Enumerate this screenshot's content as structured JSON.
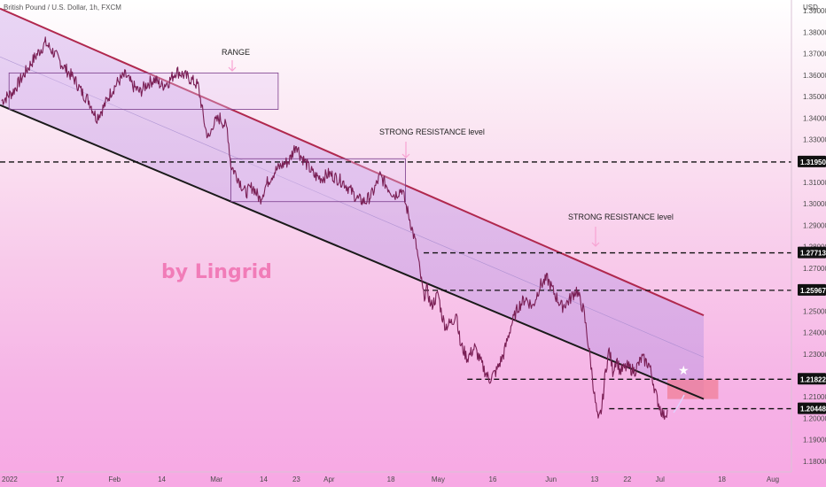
{
  "chart_title": "British Pound / U.S. Dollar, 1h, FXCM",
  "currency_label": "USD",
  "watermark": "by Lingrid",
  "annotations": {
    "range": "RANGE",
    "strong_resistance_1": "STRONG RESISTANCE level",
    "strong_resistance_2": "STRONG RESISTANCE level"
  },
  "colors": {
    "candle": "#7a1f55",
    "channel_upper": "#b0284e",
    "channel_lower": "#1a1a1a",
    "channel_fill": "#c9a0e6",
    "badge_bg": "#111111",
    "red_zone": "#f07d96"
  },
  "chart_data": {
    "type": "line",
    "title": "British Pound / U.S. Dollar, 1h, FXCM",
    "ylabel": "USD",
    "ylim": [
      1.175,
      1.395
    ],
    "y_ticks": [
      "1.18000",
      "1.19000",
      "1.20000",
      "1.21000",
      "1.23000",
      "1.24000",
      "1.25000",
      "1.26000",
      "1.27000",
      "1.28000",
      "1.29000",
      "1.30000",
      "1.31000",
      "1.32000",
      "1.33000",
      "1.34000",
      "1.35000",
      "1.36000",
      "1.37000",
      "1.38000",
      "1.39000"
    ],
    "x_ticks": [
      {
        "label": "2022",
        "t": 0
      },
      {
        "label": "17",
        "t": 16
      },
      {
        "label": "Feb",
        "t": 31
      },
      {
        "label": "14",
        "t": 44
      },
      {
        "label": "Mar",
        "t": 59
      },
      {
        "label": "14",
        "t": 72
      },
      {
        "label": "23",
        "t": 81
      },
      {
        "label": "Apr",
        "t": 90
      },
      {
        "label": "18",
        "t": 107
      },
      {
        "label": "May",
        "t": 120
      },
      {
        "label": "16",
        "t": 135
      },
      {
        "label": "Jun",
        "t": 151
      },
      {
        "label": "13",
        "t": 163
      },
      {
        "label": "22",
        "t": 172
      },
      {
        "label": "Jul",
        "t": 181
      },
      {
        "label": "18",
        "t": 198
      },
      {
        "label": "Aug",
        "t": 212
      }
    ],
    "price_series": [
      [
        0,
        1.348
      ],
      [
        3,
        1.352
      ],
      [
        6,
        1.36
      ],
      [
        9,
        1.368
      ],
      [
        12,
        1.375
      ],
      [
        14,
        1.371
      ],
      [
        17,
        1.364
      ],
      [
        20,
        1.358
      ],
      [
        22,
        1.352
      ],
      [
        24,
        1.348
      ],
      [
        26,
        1.34
      ],
      [
        28,
        1.345
      ],
      [
        30,
        1.352
      ],
      [
        32,
        1.357
      ],
      [
        34,
        1.36
      ],
      [
        36,
        1.355
      ],
      [
        38,
        1.352
      ],
      [
        40,
        1.356
      ],
      [
        42,
        1.358
      ],
      [
        44,
        1.355
      ],
      [
        46,
        1.357
      ],
      [
        48,
        1.362
      ],
      [
        50,
        1.36
      ],
      [
        52,
        1.358
      ],
      [
        54,
        1.355
      ],
      [
        55,
        1.345
      ],
      [
        56,
        1.335
      ],
      [
        57,
        1.33
      ],
      [
        58,
        1.337
      ],
      [
        60,
        1.34
      ],
      [
        62,
        1.335
      ],
      [
        63,
        1.318
      ],
      [
        65,
        1.312
      ],
      [
        67,
        1.305
      ],
      [
        69,
        1.308
      ],
      [
        71,
        1.302
      ],
      [
        73,
        1.31
      ],
      [
        75,
        1.315
      ],
      [
        77,
        1.318
      ],
      [
        79,
        1.32
      ],
      [
        81,
        1.328
      ],
      [
        82,
        1.323
      ],
      [
        84,
        1.318
      ],
      [
        86,
        1.313
      ],
      [
        88,
        1.312
      ],
      [
        90,
        1.314
      ],
      [
        92,
        1.312
      ],
      [
        94,
        1.31
      ],
      [
        96,
        1.306
      ],
      [
        98,
        1.302
      ],
      [
        100,
        1.301
      ],
      [
        102,
        1.305
      ],
      [
        104,
        1.313
      ],
      [
        106,
        1.308
      ],
      [
        108,
        1.304
      ],
      [
        110,
        1.307
      ],
      [
        111,
        1.3
      ],
      [
        112,
        1.294
      ],
      [
        113,
        1.287
      ],
      [
        114,
        1.28
      ],
      [
        115,
        1.268
      ],
      [
        116,
        1.257
      ],
      [
        117,
        1.26
      ],
      [
        118,
        1.252
      ],
      [
        119,
        1.255
      ],
      [
        120,
        1.258
      ],
      [
        121,
        1.248
      ],
      [
        122,
        1.243
      ],
      [
        124,
        1.245
      ],
      [
        125,
        1.25
      ],
      [
        126,
        1.235
      ],
      [
        128,
        1.228
      ],
      [
        130,
        1.233
      ],
      [
        132,
        1.225
      ],
      [
        134,
        1.218
      ],
      [
        136,
        1.222
      ],
      [
        138,
        1.23
      ],
      [
        140,
        1.243
      ],
      [
        142,
        1.252
      ],
      [
        144,
        1.256
      ],
      [
        146,
        1.252
      ],
      [
        148,
        1.262
      ],
      [
        150,
        1.265
      ],
      [
        152,
        1.258
      ],
      [
        154,
        1.252
      ],
      [
        156,
        1.255
      ],
      [
        158,
        1.26
      ],
      [
        160,
        1.25
      ],
      [
        161,
        1.238
      ],
      [
        162,
        1.225
      ],
      [
        163,
        1.21
      ],
      [
        164,
        1.198
      ],
      [
        165,
        1.205
      ],
      [
        166,
        1.222
      ],
      [
        167,
        1.232
      ],
      [
        168,
        1.222
      ],
      [
        169,
        1.228
      ],
      [
        170,
        1.222
      ],
      [
        172,
        1.224
      ],
      [
        174,
        1.222
      ],
      [
        176,
        1.228
      ],
      [
        178,
        1.225
      ],
      [
        179,
        1.218
      ],
      [
        180,
        1.21
      ],
      [
        181,
        1.205
      ],
      [
        182,
        1.201
      ],
      [
        183,
        1.204
      ]
    ],
    "channel": {
      "upper": [
        [
          -1,
          1.391
        ],
        [
          193,
          1.248
        ]
      ],
      "lower": [
        [
          -1,
          1.346
        ],
        [
          193,
          1.209
        ]
      ]
    },
    "range_boxes": [
      {
        "t1": 2,
        "t2": 76,
        "p1": 1.344,
        "p2": 1.361
      },
      {
        "t1": 63,
        "t2": 111,
        "p1": 1.301,
        "p2": 1.321
      }
    ],
    "levels": [
      {
        "label": "1.31950",
        "price": 1.3195,
        "t_start": -1
      },
      {
        "label": "1.27713",
        "price": 1.27713,
        "t_start": 116
      },
      {
        "label": "1.25967",
        "price": 1.25967,
        "t_start": 116
      },
      {
        "label": "1.21822",
        "price": 1.21822,
        "t_start": 128
      },
      {
        "label": "1.20448",
        "price": 1.20448,
        "t_start": 167
      }
    ],
    "red_zone": {
      "t1": 183,
      "t2": 197,
      "p1": 1.209,
      "p2": 1.218
    }
  }
}
